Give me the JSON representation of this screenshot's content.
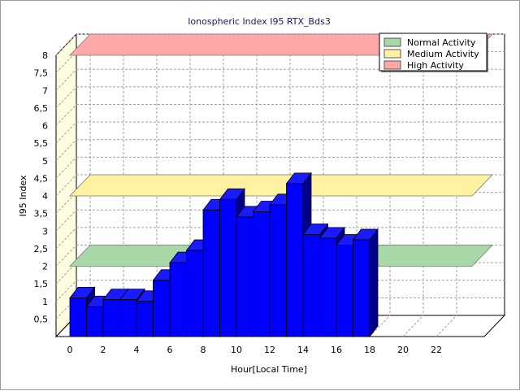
{
  "chart_data": {
    "type": "bar",
    "title": "Ionospheric Index I95 RTX_Bds3",
    "xlabel": "Hour[Local Time]",
    "ylabel": "I95 Index",
    "ylim": [
      0,
      8
    ],
    "xlim": [
      0,
      24
    ],
    "x_ticks": [
      "0",
      "2",
      "4",
      "6",
      "8",
      "10",
      "12",
      "14",
      "16",
      "18",
      "20",
      "22"
    ],
    "y_ticks": [
      "0,5",
      "1",
      "1,5",
      "2",
      "2,5",
      "3",
      "3,5",
      "4",
      "4,5",
      "5",
      "5,5",
      "6",
      "6,5",
      "7",
      "7,5",
      "8"
    ],
    "grid": true,
    "legend_position": "top-right",
    "x": [
      0,
      1,
      2,
      3,
      4,
      5,
      6,
      7,
      8,
      9,
      10,
      11,
      12,
      13,
      14,
      15,
      16,
      17
    ],
    "values": [
      1.1,
      0.85,
      1.05,
      1.05,
      1.0,
      1.6,
      2.1,
      2.45,
      3.6,
      3.9,
      3.4,
      3.55,
      3.75,
      4.35,
      2.9,
      2.8,
      2.6,
      2.75
    ],
    "bar_color": "#0000ff",
    "bands": [
      {
        "name": "Normal Activity",
        "value": 2,
        "color": "#a8d8a8"
      },
      {
        "name": "Medium Activity",
        "value": 4,
        "color": "#fff2a0"
      },
      {
        "name": "High Activity",
        "value": 8,
        "color": "#ffa8a8"
      }
    ]
  }
}
